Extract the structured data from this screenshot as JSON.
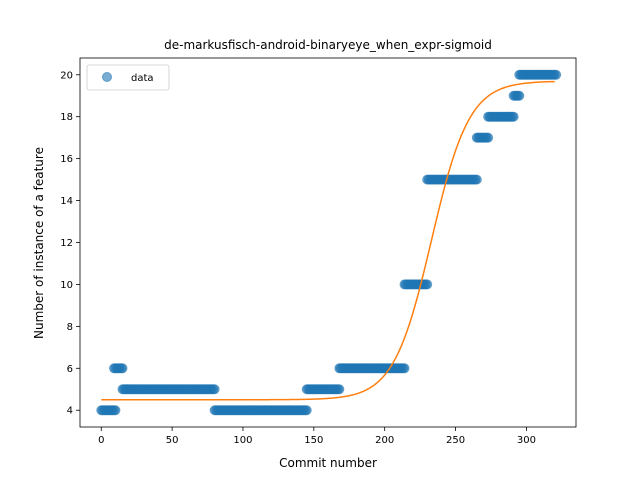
{
  "chart_data": {
    "type": "scatter",
    "title": "de-markusfisch-android-binaryeye_when_expr-sigmoid",
    "xlabel": "Commit number",
    "ylabel": "Number of instance of a feature",
    "xlim": [
      -15,
      335
    ],
    "ylim": [
      3.2,
      20.8
    ],
    "xticks": [
      0,
      50,
      100,
      150,
      200,
      250,
      300
    ],
    "yticks": [
      4,
      6,
      8,
      10,
      12,
      14,
      16,
      18,
      20
    ],
    "legend": {
      "placement": "top-left",
      "entries": [
        "data"
      ]
    },
    "grid": false,
    "series": [
      {
        "name": "data",
        "kind": "scatter",
        "color": "#1f77b4",
        "segments": [
          {
            "x_start": 0,
            "x_end": 10,
            "y": 4
          },
          {
            "x_start": 9,
            "x_end": 15,
            "y": 6
          },
          {
            "x_start": 15,
            "x_end": 80,
            "y": 5
          },
          {
            "x_start": 80,
            "x_end": 145,
            "y": 4
          },
          {
            "x_start": 145,
            "x_end": 168,
            "y": 5
          },
          {
            "x_start": 168,
            "x_end": 214,
            "y": 6
          },
          {
            "x_start": 214,
            "x_end": 230,
            "y": 10
          },
          {
            "x_start": 230,
            "x_end": 265,
            "y": 15
          },
          {
            "x_start": 265,
            "x_end": 273,
            "y": 17
          },
          {
            "x_start": 273,
            "x_end": 291,
            "y": 18
          },
          {
            "x_start": 291,
            "x_end": 295,
            "y": 19
          },
          {
            "x_start": 295,
            "x_end": 321,
            "y": 20
          }
        ]
      },
      {
        "kind": "line",
        "color": "#ff7f0e",
        "model": "sigmoid",
        "params": {
          "lower": 4.5,
          "upper": 19.7,
          "midpoint": 233,
          "steepness": 0.075
        },
        "x_range": [
          0,
          320
        ]
      }
    ]
  }
}
